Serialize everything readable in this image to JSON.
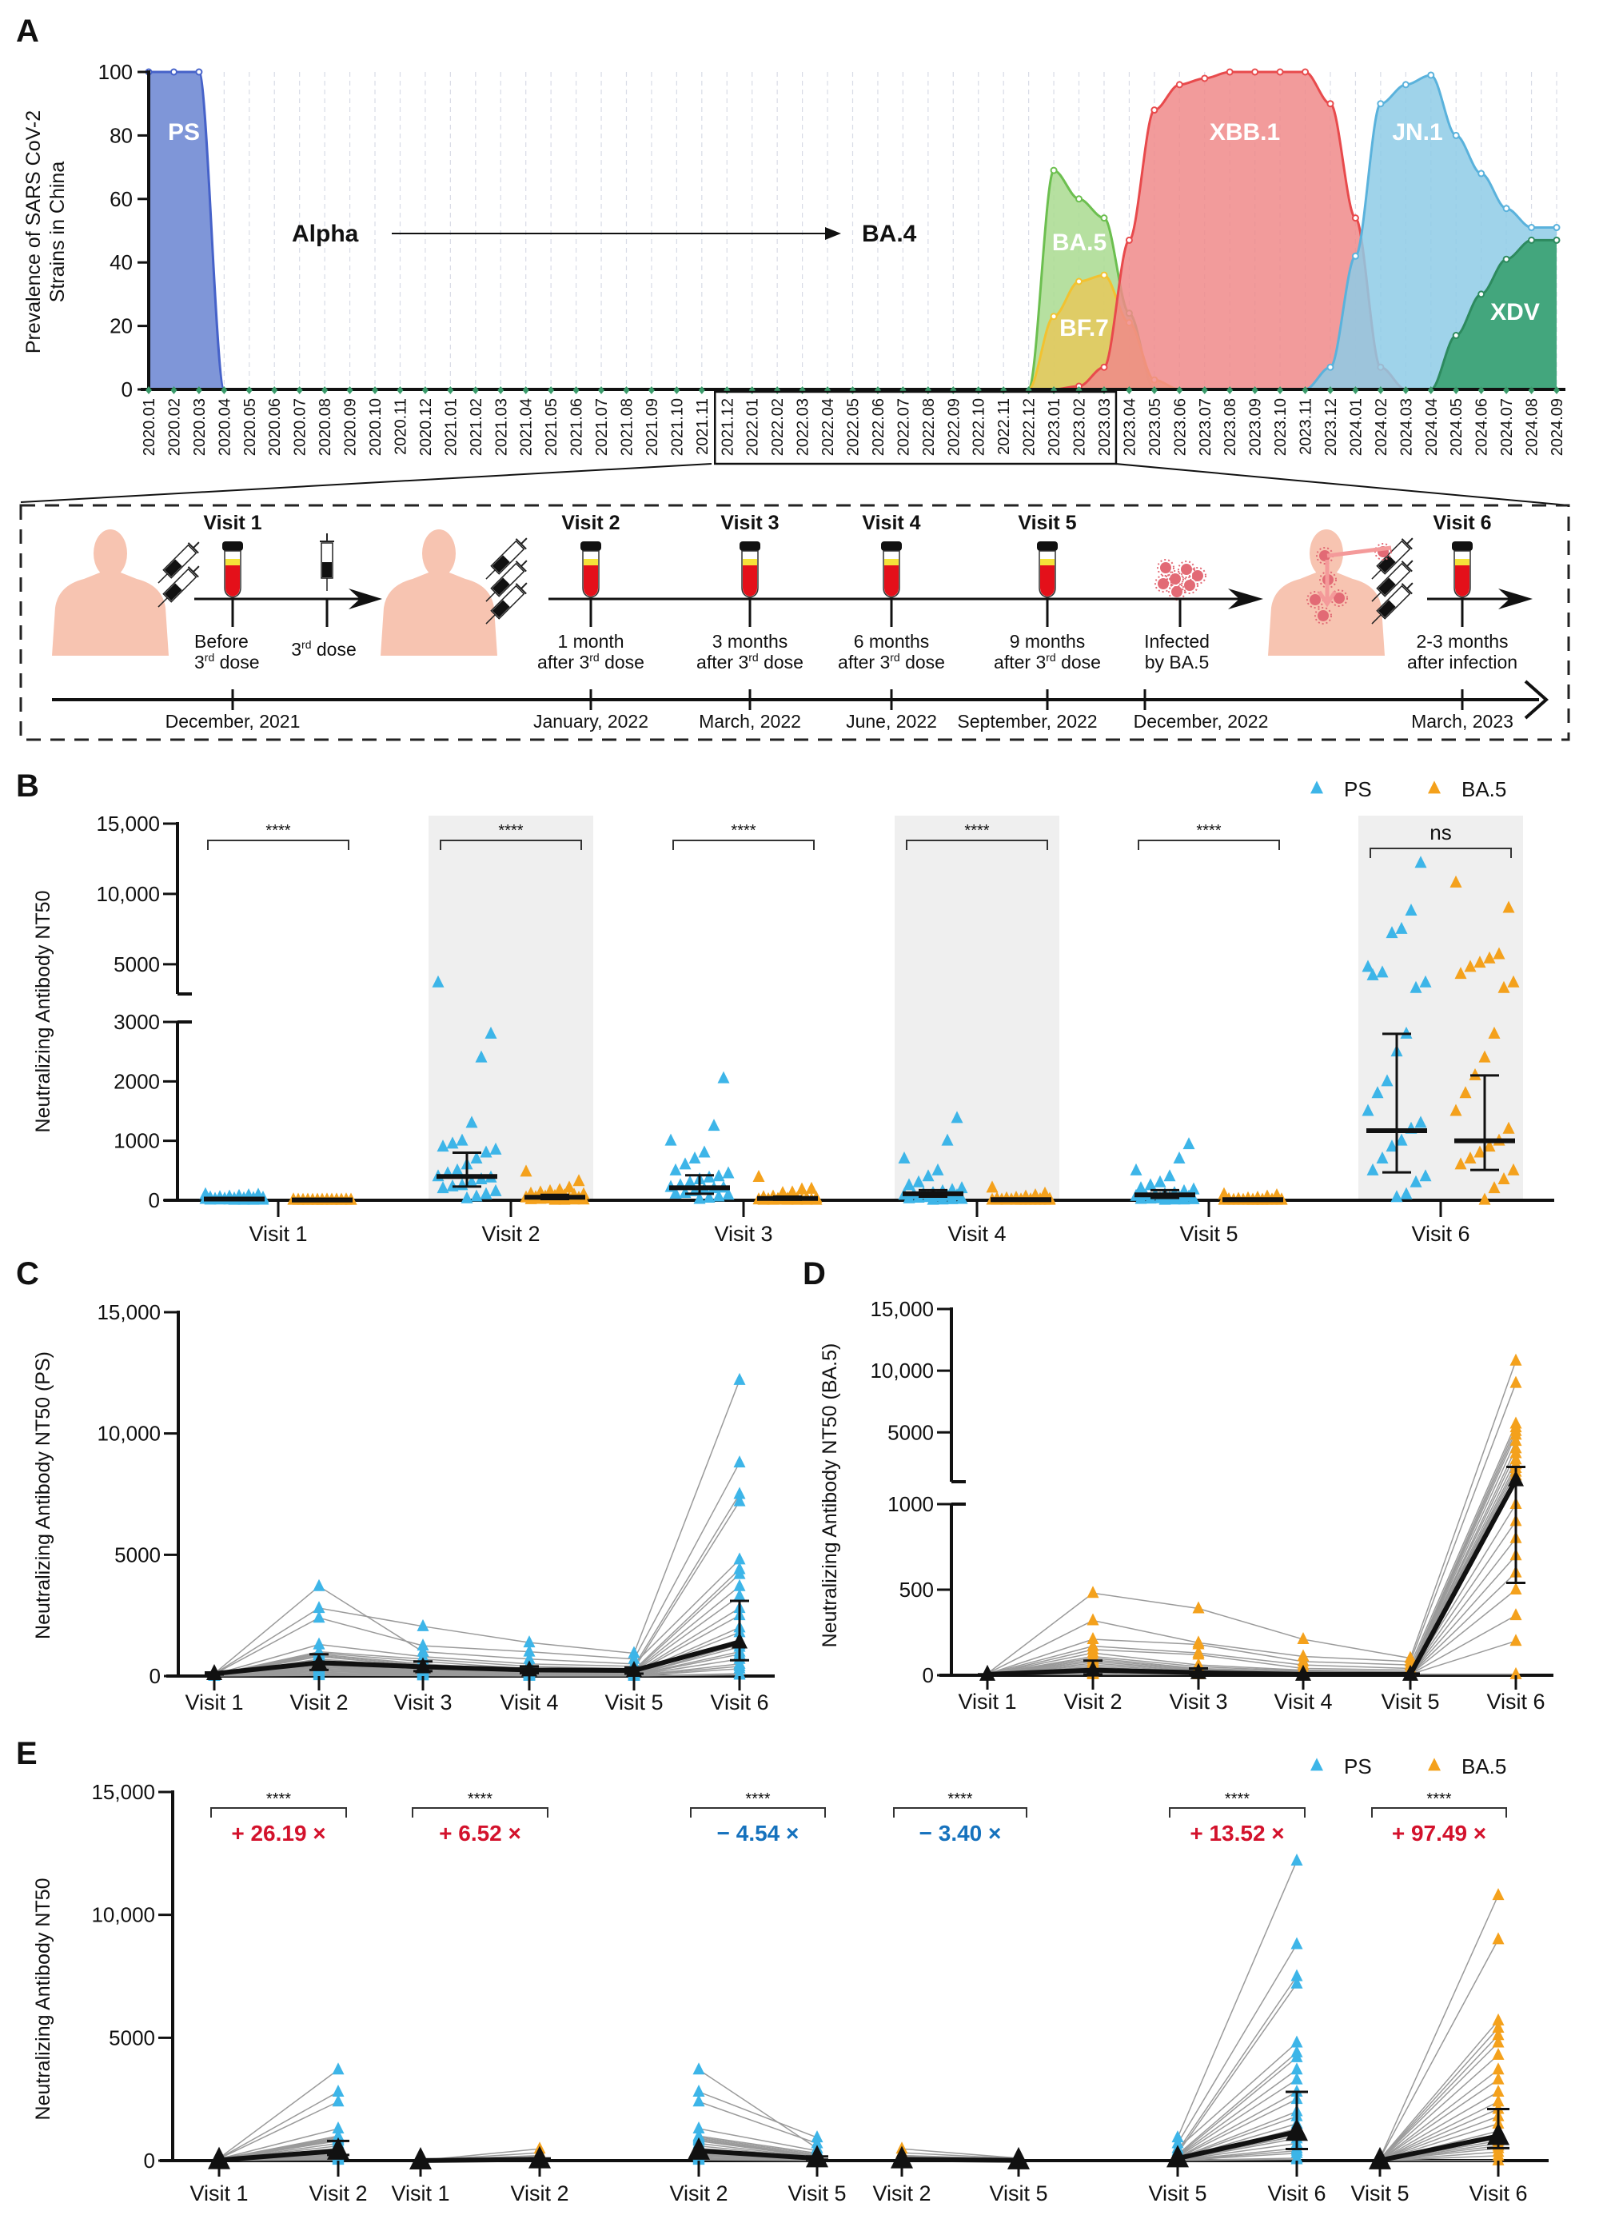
{
  "panels": {
    "a": "A",
    "b": "B",
    "c": "C",
    "d": "D",
    "e": "E"
  },
  "timeline": {
    "visits": [
      {
        "label": "Visit 1",
        "line1": "Before",
        "num": "3",
        "sup": "rd",
        "rest": " dose",
        "date": "December, 2021"
      },
      {
        "label": "Visit 2",
        "line1": "1 month",
        "pre": "after 3",
        "sup": "rd",
        "rest": "  dose",
        "date": "January, 2022"
      },
      {
        "label": "Visit 3",
        "line1": "3 months",
        "pre": "after 3",
        "sup": "rd",
        "rest": "  dose",
        "date": "March, 2022"
      },
      {
        "label": "Visit 4",
        "line1": "6 months",
        "pre": "after 3",
        "sup": "rd",
        "rest": "  dose",
        "date": "June, 2022"
      },
      {
        "label": "Visit 5",
        "line1": "9 months",
        "pre": "after 3",
        "sup": "rd",
        "rest": "  dose",
        "date": "September, 2022"
      },
      {
        "label": "Visit 6",
        "line1": "2-3 months",
        "line2": "after infection",
        "date": "March, 2023"
      }
    ],
    "third_dose": {
      "num": "3",
      "sup": "rd",
      "rest": " dose"
    },
    "infection": {
      "line1": "Infected",
      "line2": "by BA.5",
      "date": "December, 2022"
    }
  },
  "colors": {
    "PS": "#3db5e8",
    "BA.5": "#f4a11c",
    "increase": "#d3122c",
    "decrease": "#1672bd",
    "band": "#efefef"
  },
  "chart_data": [
    {
      "type": "area",
      "ylabel": [
        "Prevalence of SARS CoV-2",
        "Strains in China"
      ],
      "ylim": [
        0,
        100
      ],
      "yticks": [
        "0",
        "20",
        "40",
        "60",
        "80",
        "100"
      ],
      "grid": "vertical dashed",
      "x": [
        "2020.01",
        "2020.02",
        "2020.03",
        "2020.04",
        "2020.05",
        "2020.06",
        "2020.07",
        "2020.08",
        "2020.09",
        "2020.10",
        "2020.11",
        "2020.12",
        "2021.01",
        "2021.02",
        "2021.03",
        "2021.04",
        "2021.05",
        "2021.06",
        "2021.07",
        "2021.08",
        "2021.09",
        "2021.10",
        "2021.11",
        "2021.12",
        "2022.01",
        "2022.02",
        "2022.03",
        "2022.04",
        "2022.05",
        "2022.06",
        "2022.07",
        "2022.08",
        "2022.09",
        "2022.10",
        "2022.11",
        "2022.12",
        "2023.01",
        "2023.02",
        "2023.03",
        "2023.04",
        "2023.05",
        "2023.06",
        "2023.07",
        "2023.08",
        "2023.09",
        "2023.10",
        "2023.11",
        "2023.12",
        "2024.01",
        "2024.02",
        "2024.03",
        "2024.04",
        "2024.05",
        "2024.06",
        "2024.07",
        "2024.08",
        "2024.09"
      ],
      "highlight_range": [
        "2021.12",
        "2023.03"
      ],
      "annotation": {
        "from": "Alpha",
        "to": "BA.4"
      },
      "series": [
        {
          "name": "PS",
          "fill": "#7f96d8",
          "stroke": "#4662c9",
          "points": [
            [
              "2020.01",
              100
            ],
            [
              "2020.02",
              100
            ],
            [
              "2020.03",
              100
            ],
            [
              "2020.04",
              0
            ]
          ]
        },
        {
          "name": "BA.5",
          "fill": "#a9da8f",
          "stroke": "#6cbf4f",
          "points": [
            [
              "2022.12",
              0
            ],
            [
              "2023.01",
              69
            ],
            [
              "2023.02",
              60
            ],
            [
              "2023.03",
              54
            ],
            [
              "2023.04",
              24
            ],
            [
              "2023.05",
              0
            ]
          ]
        },
        {
          "name": "BF.7",
          "fill": "#e6c85c",
          "stroke": "#f2c230",
          "points": [
            [
              "2022.12",
              0
            ],
            [
              "2023.01",
              23
            ],
            [
              "2023.02",
              34
            ],
            [
              "2023.03",
              36
            ],
            [
              "2023.04",
              21
            ],
            [
              "2023.05",
              3
            ],
            [
              "2023.06",
              0
            ]
          ]
        },
        {
          "name": "XBB.1",
          "fill": "#f0898a",
          "stroke": "#e84a4c",
          "points": [
            [
              "2023.01",
              0
            ],
            [
              "2023.02",
              1
            ],
            [
              "2023.03",
              7
            ],
            [
              "2023.04",
              47
            ],
            [
              "2023.05",
              88
            ],
            [
              "2023.06",
              96
            ],
            [
              "2023.07",
              98
            ],
            [
              "2023.08",
              100
            ],
            [
              "2023.09",
              100
            ],
            [
              "2023.10",
              100
            ],
            [
              "2023.11",
              100
            ],
            [
              "2023.12",
              90
            ],
            [
              "2024.01",
              54
            ],
            [
              "2024.02",
              7
            ],
            [
              "2024.03",
              0
            ]
          ]
        },
        {
          "name": "JN.1",
          "fill": "#8ecbe6",
          "stroke": "#5ab2dc",
          "points": [
            [
              "2023.11",
              0
            ],
            [
              "2023.12",
              7
            ],
            [
              "2024.01",
              42
            ],
            [
              "2024.02",
              90
            ],
            [
              "2024.03",
              96
            ],
            [
              "2024.04",
              99
            ],
            [
              "2024.05",
              80
            ],
            [
              "2024.06",
              68
            ],
            [
              "2024.07",
              57
            ],
            [
              "2024.08",
              51
            ],
            [
              "2024.09",
              51
            ]
          ]
        },
        {
          "name": "XDV",
          "fill": "#43a67d",
          "stroke": "#2d8a5f",
          "points": [
            [
              "2024.04",
              0
            ],
            [
              "2024.05",
              17
            ],
            [
              "2024.06",
              30
            ],
            [
              "2024.07",
              41
            ],
            [
              "2024.08",
              47
            ],
            [
              "2024.09",
              47
            ]
          ]
        }
      ]
    },
    {
      "type": "scatter",
      "ylabel": "Neutralizing Antibody NT50",
      "yaxis_break": [
        3000,
        3000
      ],
      "yticks": [
        "0",
        "1000",
        "2000",
        "3000",
        "5000",
        "10,000",
        "15,000"
      ],
      "ytick_values": [
        0,
        1000,
        2000,
        3000,
        5000,
        10000,
        15000
      ],
      "categories": [
        "Visit 1",
        "Visit 2",
        "Visit 3",
        "Visit 4",
        "Visit 5",
        "Visit 6"
      ],
      "legend": [
        "PS",
        "BA.5"
      ],
      "legend_position": "top-right",
      "significance": [
        "****",
        "****",
        "****",
        "****",
        "****",
        "ns"
      ],
      "shaded_visits": [
        "Visit 2",
        "Visit 4",
        "Visit 6"
      ],
      "summary": {
        "PS": {
          "median": [
            20,
            400,
            210,
            110,
            90,
            1170
          ],
          "lower": [
            10,
            230,
            110,
            60,
            40,
            470
          ],
          "upper": [
            40,
            800,
            420,
            170,
            170,
            2800
          ]
        },
        "BA.5": {
          "median": [
            5,
            50,
            30,
            10,
            10,
            1000
          ],
          "lower": [
            5,
            20,
            10,
            5,
            5,
            510
          ],
          "upper": [
            10,
            90,
            60,
            20,
            15,
            2100
          ]
        }
      },
      "individual_values": {
        "PS": [
          [
            100,
            90,
            80,
            70,
            60,
            50,
            45,
            40,
            35,
            30,
            28,
            25,
            22,
            20,
            18,
            15,
            12,
            10,
            10,
            8,
            6,
            5,
            5,
            5
          ],
          [
            3700,
            2800,
            2400,
            1300,
            1000,
            950,
            900,
            850,
            800,
            700,
            600,
            500,
            450,
            400,
            380,
            350,
            300,
            250,
            230,
            200,
            150,
            100,
            60,
            30
          ],
          [
            1000,
            2050,
            1250,
            800,
            700,
            600,
            500,
            450,
            400,
            380,
            350,
            300,
            250,
            220,
            210,
            200,
            180,
            150,
            120,
            110,
            90,
            60,
            40,
            20
          ],
          [
            700,
            1380,
            1000,
            500,
            400,
            300,
            250,
            200,
            170,
            150,
            120,
            110,
            100,
            90,
            80,
            70,
            60,
            50,
            40,
            30,
            20,
            15,
            10,
            5
          ],
          [
            500,
            940,
            700,
            400,
            300,
            250,
            200,
            180,
            150,
            120,
            100,
            90,
            80,
            70,
            60,
            50,
            40,
            30,
            25,
            20,
            15,
            10,
            10,
            5
          ],
          [
            4800,
            12200,
            8800,
            7500,
            7200,
            4400,
            4200,
            3700,
            3300,
            2800,
            2500,
            2000,
            1800,
            1500,
            1300,
            1200,
            1000,
            900,
            700,
            500,
            400,
            300,
            100,
            50
          ]
        ],
        "BA.5": [
          [
            10,
            10,
            8,
            8,
            5,
            5,
            5,
            5,
            5,
            5,
            5,
            5,
            5,
            5,
            5,
            5,
            5,
            5,
            5,
            5,
            5,
            5,
            5,
            5
          ],
          [
            480,
            320,
            210,
            170,
            150,
            130,
            110,
            100,
            90,
            80,
            70,
            60,
            50,
            45,
            40,
            35,
            30,
            25,
            20,
            15,
            10,
            10,
            5,
            5
          ],
          [
            390,
            190,
            180,
            130,
            120,
            60,
            50,
            40,
            35,
            30,
            25,
            20,
            15,
            12,
            10,
            10,
            8,
            6,
            5,
            5,
            5,
            5,
            5,
            5
          ],
          [
            210,
            110,
            80,
            60,
            40,
            30,
            25,
            20,
            15,
            12,
            10,
            10,
            8,
            6,
            5,
            5,
            5,
            5,
            5,
            5,
            5,
            5,
            5,
            5
          ],
          [
            100,
            80,
            60,
            40,
            30,
            20,
            15,
            10,
            8,
            5,
            5,
            5,
            5,
            5,
            5,
            5,
            5,
            5,
            5,
            5,
            5,
            5,
            5,
            5
          ],
          [
            10800,
            9000,
            5700,
            5400,
            5100,
            4800,
            4300,
            3700,
            3300,
            2800,
            2400,
            2100,
            1800,
            1500,
            1200,
            1000,
            900,
            800,
            700,
            600,
            500,
            350,
            200,
            5
          ]
        ]
      }
    },
    {
      "type": "line",
      "strain": "PS",
      "ylabel": "Neutralizing Antibody NT50 (PS)",
      "ylim": [
        0,
        15000
      ],
      "yticks": [
        "0",
        "5000",
        "10,000",
        "15,000"
      ],
      "ytick_values": [
        0,
        5000,
        10000,
        15000
      ],
      "categories": [
        "Visit 1",
        "Visit 2",
        "Visit 3",
        "Visit 4",
        "Visit 5",
        "Visit 6"
      ],
      "median": [
        100,
        550,
        380,
        250,
        230,
        1400
      ],
      "lower": [
        60,
        250,
        200,
        120,
        100,
        650
      ],
      "upper": [
        150,
        900,
        600,
        400,
        350,
        3100
      ]
    },
    {
      "type": "line",
      "strain": "BA.5",
      "ylabel": "Neutralizing Antibody NT50 (BA.5)",
      "yaxis_break": [
        1000,
        1000
      ],
      "yticks": [
        "0",
        "500",
        "1000",
        "5000",
        "10,000",
        "15,000"
      ],
      "ytick_values": [
        0,
        500,
        1000,
        5000,
        10000,
        15000
      ],
      "categories": [
        "Visit 1",
        "Visit 2",
        "Visit 3",
        "Visit 4",
        "Visit 5",
        "Visit 6"
      ],
      "median": [
        5,
        30,
        15,
        5,
        5,
        1150
      ],
      "lower": [
        5,
        5,
        5,
        5,
        5,
        540
      ],
      "upper": [
        5,
        85,
        40,
        10,
        10,
        2200
      ]
    },
    {
      "type": "line",
      "ylabel": "Neutralizing Antibody NT50",
      "ylim": [
        0,
        15000
      ],
      "yticks": [
        "0",
        "5000",
        "10,000",
        "15,000"
      ],
      "ytick_values": [
        0,
        5000,
        10000,
        15000
      ],
      "legend": [
        "PS",
        "BA.5"
      ],
      "legend_position": "top-right",
      "pairs": [
        {
          "strain": "PS",
          "from": "Visit 1",
          "to": "Visit 2",
          "significance": "****",
          "fold": "+ 26.19 ×",
          "direction": "increase",
          "median": [
            20,
            400
          ],
          "upper_to": 800,
          "lower_to": 230
        },
        {
          "strain": "BA.5",
          "from": "Visit 1",
          "to": "Visit 2",
          "significance": "****",
          "fold": "+ 6.52 ×",
          "direction": "increase",
          "median": [
            5,
            50
          ],
          "upper_to": 90,
          "lower_to": 20
        },
        {
          "strain": "PS",
          "from": "Visit 2",
          "to": "Visit 5",
          "significance": "****",
          "fold": "− 4.54 ×",
          "direction": "decrease",
          "median": [
            400,
            90
          ],
          "upper_to": 170,
          "lower_to": 40
        },
        {
          "strain": "BA.5",
          "from": "Visit 2",
          "to": "Visit 5",
          "significance": "****",
          "fold": "− 3.40 ×",
          "direction": "decrease",
          "median": [
            50,
            10
          ],
          "upper_to": 15,
          "lower_to": 5
        },
        {
          "strain": "PS",
          "from": "Visit 5",
          "to": "Visit 6",
          "significance": "****",
          "fold": "+ 13.52 ×",
          "direction": "increase",
          "median": [
            90,
            1170
          ],
          "upper_to": 2800,
          "lower_to": 470
        },
        {
          "strain": "BA.5",
          "from": "Visit 5",
          "to": "Visit 6",
          "significance": "****",
          "fold": "+ 97.49 ×",
          "direction": "increase",
          "median": [
            10,
            1000
          ],
          "upper_to": 2100,
          "lower_to": 510
        }
      ]
    }
  ]
}
